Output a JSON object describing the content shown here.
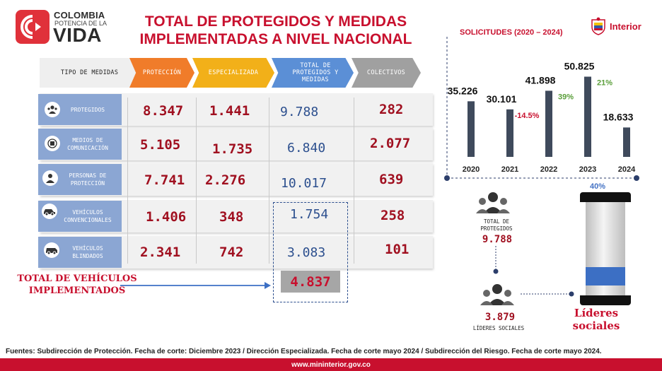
{
  "logo": {
    "line1": "COLOMBIA",
    "line2": "POTENCIA DE LA",
    "line3": "VIDA"
  },
  "title": {
    "line1": "TOTAL DE PROTEGIDOS Y MEDIDAS",
    "line2": "IMPLEMENTADAS A NIVEL NACIONAL"
  },
  "brand": {
    "interior": "Interior",
    "accent": "#c8102e"
  },
  "headers": {
    "tipo": "TIPO DE MEDIDAS",
    "proteccion": "PROTECCIÓN",
    "especializada": "ESPECIALIZADA",
    "total": "TOTAL DE PROTEGIDOS Y MEDIDAS",
    "colectivos": "COLECTIVOS"
  },
  "rows": [
    {
      "label": "PROTEGIDOS",
      "icon": "people-group-icon",
      "proteccion": "8.347",
      "especializada": "1.441",
      "total": "9.788",
      "colectivos": "282"
    },
    {
      "label": "MEDIOS DE COMUNICACIÓN",
      "icon": "media-icon",
      "proteccion": "5.105",
      "especializada": "1.735",
      "total": "6.840",
      "colectivos": "2.077"
    },
    {
      "label": "PERSONAS DE PROTECCIÓN",
      "icon": "person-icon",
      "proteccion": "7.741",
      "especializada": "2.276",
      "total": "10.017",
      "colectivos": "639"
    },
    {
      "label": "VEHÍCULOS CONVENCIONALES",
      "icon": "car-icon",
      "proteccion": "1.406",
      "especializada": "348",
      "total": "1.754",
      "colectivos": "258"
    },
    {
      "label": "VEHÍCULOS BLINDADOS",
      "icon": "armored-car-icon",
      "proteccion": "2.341",
      "especializada": "742",
      "total": "3.083",
      "colectivos": "101"
    }
  ],
  "vehicles": {
    "label": "TOTAL DE VEHÍCULOS IMPLEMENTADOS",
    "total": "4.837"
  },
  "solicitudes": {
    "title": "SOLICITUDES (2020 – 2024)"
  },
  "chart_data": {
    "type": "bar",
    "title": "SOLICITUDES (2020 – 2024)",
    "categories": [
      "2020",
      "2021",
      "2022",
      "2023",
      "2024"
    ],
    "values": [
      35226,
      30101,
      41898,
      50825,
      18633
    ],
    "value_labels": [
      "35.226",
      "30.101",
      "41.898",
      "50.825",
      "18.633"
    ],
    "changes": [
      "",
      "-14.5%",
      "39%",
      "21%",
      ""
    ],
    "change_colors": [
      "",
      "#c8102e",
      "#5a9e3a",
      "#5a9e3a",
      ""
    ],
    "ylim": [
      0,
      60000
    ],
    "bar_color": "#3f4a5c"
  },
  "protegidos_total": {
    "label": "TOTAL DE PROTEGIDOS",
    "value": "9.788"
  },
  "lideres_sociales": {
    "value": "3.879",
    "label": "LÍDERES SOCIALES",
    "title": "Líderes sociales",
    "percent": "40%",
    "share": 0.4
  },
  "footer": {
    "sources": "Fuentes: Subdirección de Protección. Fecha de corte: Diciembre 2023 / Dirección Especializada. Fecha de corte mayo 2024 / Subdirección del Riesgo. Fecha de corte mayo 2024.",
    "url": "www.mininterior.gov.co"
  }
}
